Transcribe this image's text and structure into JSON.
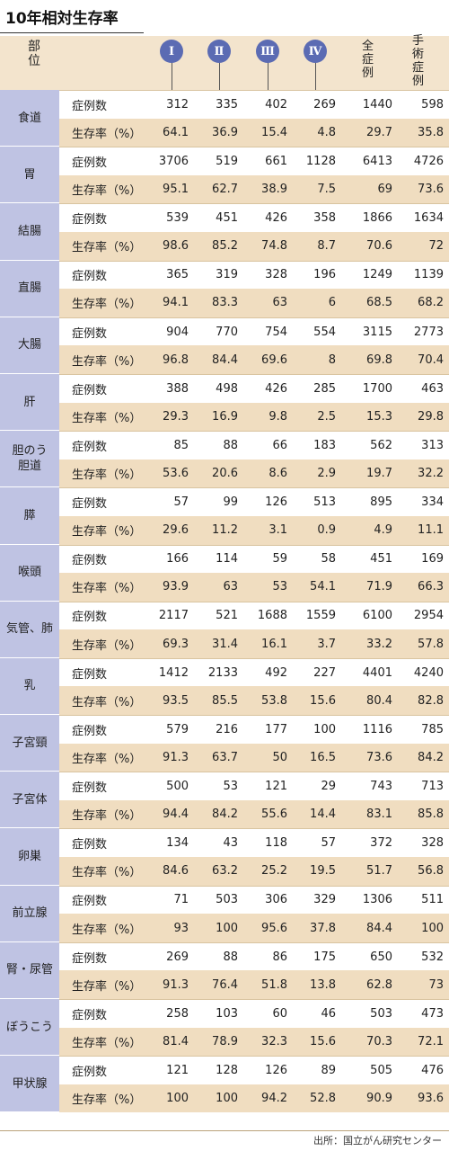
{
  "title": "10年相対生存率",
  "header": {
    "part_label": [
      "部",
      "位"
    ],
    "stages": [
      "Ⅰ",
      "Ⅱ",
      "Ⅲ",
      "Ⅳ"
    ],
    "all_cases": [
      "全",
      "症",
      "例"
    ],
    "surgical_cases": [
      "手",
      "術",
      "症",
      "例"
    ]
  },
  "row_labels": {
    "count": "症例数",
    "rate": "生存率（%）"
  },
  "source": "出所：国立がん研究センター",
  "chart_data": {
    "type": "table",
    "title": "10年相対生存率",
    "columns": [
      "Ⅰ",
      "Ⅱ",
      "Ⅲ",
      "Ⅳ",
      "全症例",
      "手術症例"
    ],
    "rows": [
      {
        "site": "食道",
        "cases": [
          "312",
          "335",
          "402",
          "269",
          "1440",
          "598"
        ],
        "survival": [
          "64.1",
          "36.9",
          "15.4",
          "4.8",
          "29.7",
          "35.8"
        ]
      },
      {
        "site": "胃",
        "cases": [
          "3706",
          "519",
          "661",
          "1128",
          "6413",
          "4726"
        ],
        "survival": [
          "95.1",
          "62.7",
          "38.9",
          "7.5",
          "69",
          "73.6"
        ]
      },
      {
        "site": "結腸",
        "cases": [
          "539",
          "451",
          "426",
          "358",
          "1866",
          "1634"
        ],
        "survival": [
          "98.6",
          "85.2",
          "74.8",
          "8.7",
          "70.6",
          "72"
        ]
      },
      {
        "site": "直腸",
        "cases": [
          "365",
          "319",
          "328",
          "196",
          "1249",
          "1139"
        ],
        "survival": [
          "94.1",
          "83.3",
          "63",
          "6",
          "68.5",
          "68.2"
        ]
      },
      {
        "site": "大腸",
        "cases": [
          "904",
          "770",
          "754",
          "554",
          "3115",
          "2773"
        ],
        "survival": [
          "96.8",
          "84.4",
          "69.6",
          "8",
          "69.8",
          "70.4"
        ]
      },
      {
        "site": "肝",
        "cases": [
          "388",
          "498",
          "426",
          "285",
          "1700",
          "463"
        ],
        "survival": [
          "29.3",
          "16.9",
          "9.8",
          "2.5",
          "15.3",
          "29.8"
        ]
      },
      {
        "site": "胆のう\n胆道",
        "cases": [
          "85",
          "88",
          "66",
          "183",
          "562",
          "313"
        ],
        "survival": [
          "53.6",
          "20.6",
          "8.6",
          "2.9",
          "19.7",
          "32.2"
        ]
      },
      {
        "site": "膵",
        "cases": [
          "57",
          "99",
          "126",
          "513",
          "895",
          "334"
        ],
        "survival": [
          "29.6",
          "11.2",
          "3.1",
          "0.9",
          "4.9",
          "11.1"
        ]
      },
      {
        "site": "喉頭",
        "cases": [
          "166",
          "114",
          "59",
          "58",
          "451",
          "169"
        ],
        "survival": [
          "93.9",
          "63",
          "53",
          "54.1",
          "71.9",
          "66.3"
        ]
      },
      {
        "site": "気管、肺",
        "cases": [
          "2117",
          "521",
          "1688",
          "1559",
          "6100",
          "2954"
        ],
        "survival": [
          "69.3",
          "31.4",
          "16.1",
          "3.7",
          "33.2",
          "57.8"
        ]
      },
      {
        "site": "乳",
        "cases": [
          "1412",
          "2133",
          "492",
          "227",
          "4401",
          "4240"
        ],
        "survival": [
          "93.5",
          "85.5",
          "53.8",
          "15.6",
          "80.4",
          "82.8"
        ]
      },
      {
        "site": "子宮頸",
        "cases": [
          "579",
          "216",
          "177",
          "100",
          "1116",
          "785"
        ],
        "survival": [
          "91.3",
          "63.7",
          "50",
          "16.5",
          "73.6",
          "84.2"
        ]
      },
      {
        "site": "子宮体",
        "cases": [
          "500",
          "53",
          "121",
          "29",
          "743",
          "713"
        ],
        "survival": [
          "94.4",
          "84.2",
          "55.6",
          "14.4",
          "83.1",
          "85.8"
        ]
      },
      {
        "site": "卵巣",
        "cases": [
          "134",
          "43",
          "118",
          "57",
          "372",
          "328"
        ],
        "survival": [
          "84.6",
          "63.2",
          "25.2",
          "19.5",
          "51.7",
          "56.8"
        ]
      },
      {
        "site": "前立腺",
        "cases": [
          "71",
          "503",
          "306",
          "329",
          "1306",
          "511"
        ],
        "survival": [
          "93",
          "100",
          "95.6",
          "37.8",
          "84.4",
          "100"
        ]
      },
      {
        "site": "腎・尿管",
        "cases": [
          "269",
          "88",
          "86",
          "175",
          "650",
          "532"
        ],
        "survival": [
          "91.3",
          "76.4",
          "51.8",
          "13.8",
          "62.8",
          "73"
        ]
      },
      {
        "site": "ぼうこう",
        "cases": [
          "258",
          "103",
          "60",
          "46",
          "503",
          "473"
        ],
        "survival": [
          "81.4",
          "78.9",
          "32.3",
          "15.6",
          "70.3",
          "72.1"
        ]
      },
      {
        "site": "甲状腺",
        "cases": [
          "121",
          "128",
          "126",
          "89",
          "505",
          "476"
        ],
        "survival": [
          "100",
          "100",
          "94.2",
          "52.8",
          "90.9",
          "93.6"
        ]
      }
    ]
  }
}
